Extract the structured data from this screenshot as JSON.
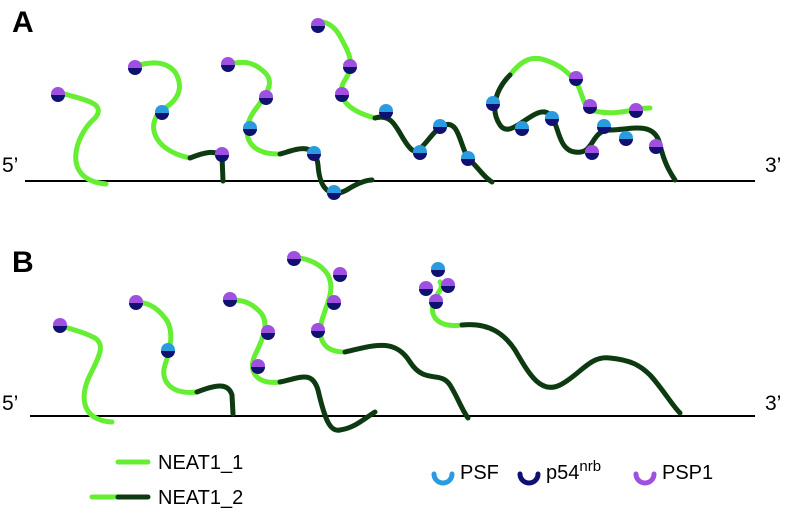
{
  "panels": [
    {
      "label": "A",
      "five_prime": "5’",
      "three_prime": "3’"
    },
    {
      "label": "B",
      "five_prime": "5’",
      "three_prime": "3’"
    }
  ],
  "legend": {
    "neat1_1": "NEAT1_1",
    "neat1_2": "NEAT1_2",
    "psf": "PSF",
    "p54_base": "p54",
    "p54_sup": "nrb",
    "psp1": "PSP1"
  },
  "colors": {
    "neat1_light": "#66ee33",
    "neat1_dark": "#0e3a12",
    "psf": "#2b9be0",
    "p54nrb": "#101070",
    "psp1": "#a050e0",
    "line": "#000000"
  }
}
